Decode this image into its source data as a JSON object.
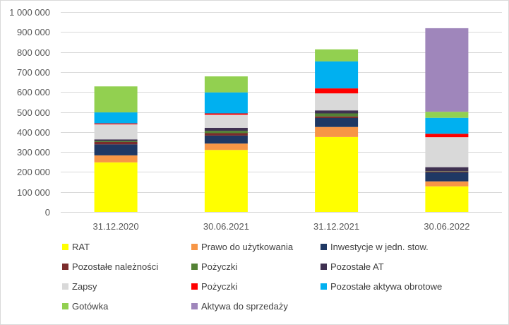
{
  "chart_data": {
    "type": "bar",
    "stacked": true,
    "categories": [
      "31.12.2020",
      "30.06.2021",
      "31.12.2021",
      "30.06.2022"
    ],
    "ylim": [
      0,
      1000000
    ],
    "yticks": [
      0,
      100000,
      200000,
      300000,
      400000,
      500000,
      600000,
      700000,
      800000,
      900000,
      1000000
    ],
    "ytick_labels": [
      "0",
      "100 000",
      "200 000",
      "300 000",
      "400 000",
      "500 000",
      "600 000",
      "700 000",
      "800 000",
      "900 000",
      "1 000 000"
    ],
    "grid": true,
    "legend_position": "bottom",
    "series": [
      {
        "name": "RAT",
        "color": "#ffff00",
        "values": [
          248000,
          310000,
          375000,
          128000
        ]
      },
      {
        "name": "Prawo do użytkowania",
        "color": "#f79646",
        "values": [
          35000,
          32000,
          50000,
          25000
        ]
      },
      {
        "name": "Inwestycje w jedn. stow.",
        "color": "#1f3864",
        "values": [
          55000,
          40000,
          45000,
          45000
        ]
      },
      {
        "name": "Pozostałe należności",
        "color": "#7b2c2c",
        "values": [
          12000,
          12000,
          8000,
          4000
        ]
      },
      {
        "name": "Pożyczki",
        "color": "#548235",
        "values": [
          5000,
          12000,
          15000,
          2000
        ]
      },
      {
        "name": "Pozostałe AT",
        "color": "#3f3151",
        "values": [
          8000,
          15000,
          15000,
          20000
        ]
      },
      {
        "name": "Zapsy",
        "color": "#d9d9d9",
        "values": [
          75000,
          65000,
          85000,
          150000
        ]
      },
      {
        "name": "Pożyczki",
        "color": "#ff0000",
        "values": [
          5000,
          7000,
          25000,
          17000
        ]
      },
      {
        "name": "Pozostałe aktywa obrotowe",
        "color": "#00b0f0",
        "values": [
          55000,
          105000,
          135000,
          80000
        ]
      },
      {
        "name": "Gotówka",
        "color": "#92d050",
        "values": [
          130000,
          80000,
          60000,
          30000
        ]
      },
      {
        "name": "Aktywa do sprzedaży",
        "color": "#9f86bb",
        "values": [
          0,
          0,
          0,
          418000
        ]
      }
    ]
  }
}
